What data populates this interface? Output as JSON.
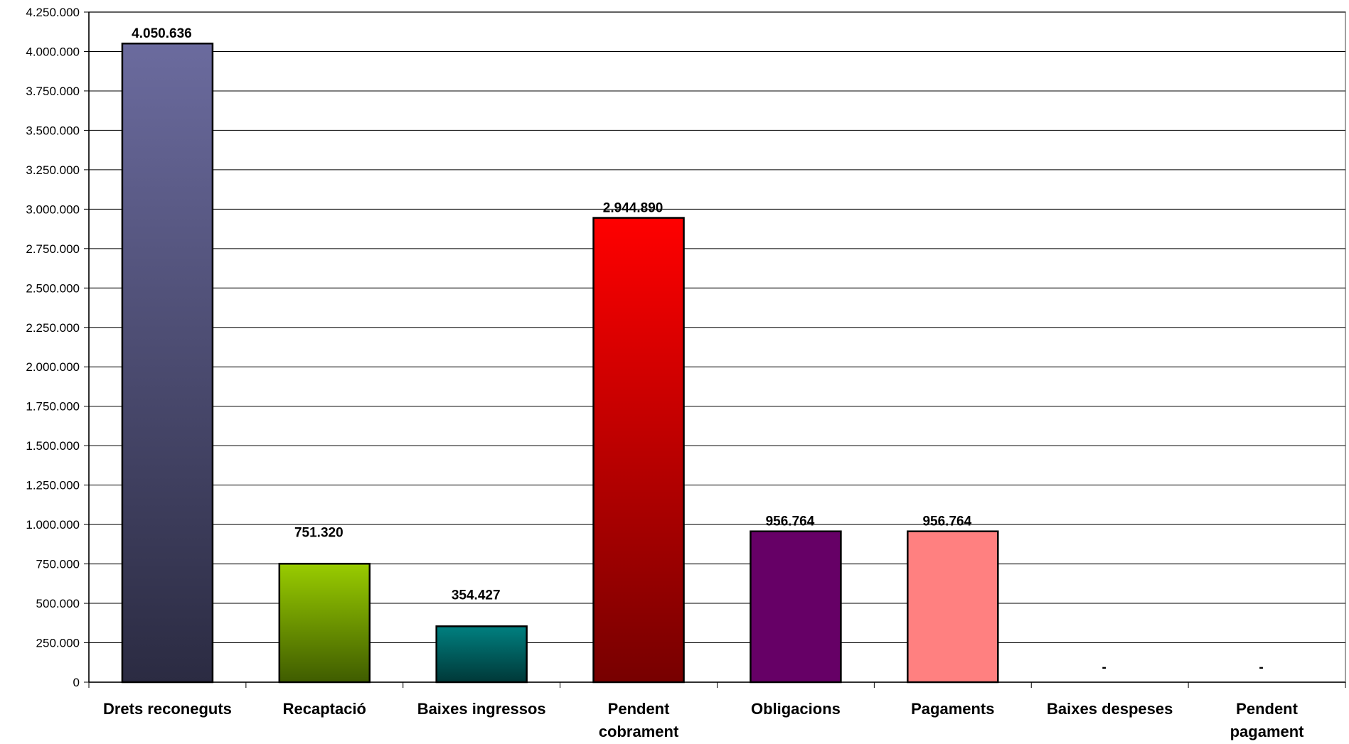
{
  "chart_data": {
    "type": "bar",
    "title": "",
    "xlabel": "",
    "ylabel": "",
    "ylim": [
      0,
      4250000
    ],
    "y_ticks": [
      0,
      250000,
      500000,
      750000,
      1000000,
      1250000,
      1500000,
      1750000,
      2000000,
      2250000,
      2500000,
      2750000,
      3000000,
      3250000,
      3500000,
      3750000,
      4000000,
      4250000
    ],
    "y_tick_labels": [
      "0",
      "250.000",
      "500.000",
      "750.000",
      "1.000.000",
      "1.250.000",
      "1.500.000",
      "1.750.000",
      "2.000.000",
      "2.250.000",
      "2.500.000",
      "2.750.000",
      "3.000.000",
      "3.250.000",
      "3.500.000",
      "3.750.000",
      "4.000.000",
      "4.250.000"
    ],
    "grid": true,
    "legend": "none",
    "categories": [
      [
        "Drets reconeguts"
      ],
      [
        "Recaptació"
      ],
      [
        "Baixes ingressos"
      ],
      [
        "Pendent",
        "cobrament"
      ],
      [
        "Obligacions"
      ],
      [
        "Pagaments"
      ],
      [
        "Baixes despeses"
      ],
      [
        "Pendent",
        "pagament"
      ]
    ],
    "values": [
      4050636,
      751320,
      354427,
      2944890,
      956764,
      956764,
      0,
      0
    ],
    "data_labels": [
      "4.050.636",
      "751.320",
      "354.427",
      "2.944.890",
      "956.764",
      "956.764",
      "-",
      "-"
    ],
    "bar_colors": [
      [
        "#6b6b9e",
        "#2b2b42"
      ],
      [
        "#99cc00",
        "#3f5c00"
      ],
      [
        "#008080",
        "#003838"
      ],
      [
        "#ff0000",
        "#770000"
      ],
      [
        "#660066",
        "#660066"
      ],
      [
        "#ff8080",
        "#ff8080"
      ],
      [
        "#cccccc",
        "#cccccc"
      ],
      [
        "#cccccc",
        "#cccccc"
      ]
    ]
  }
}
